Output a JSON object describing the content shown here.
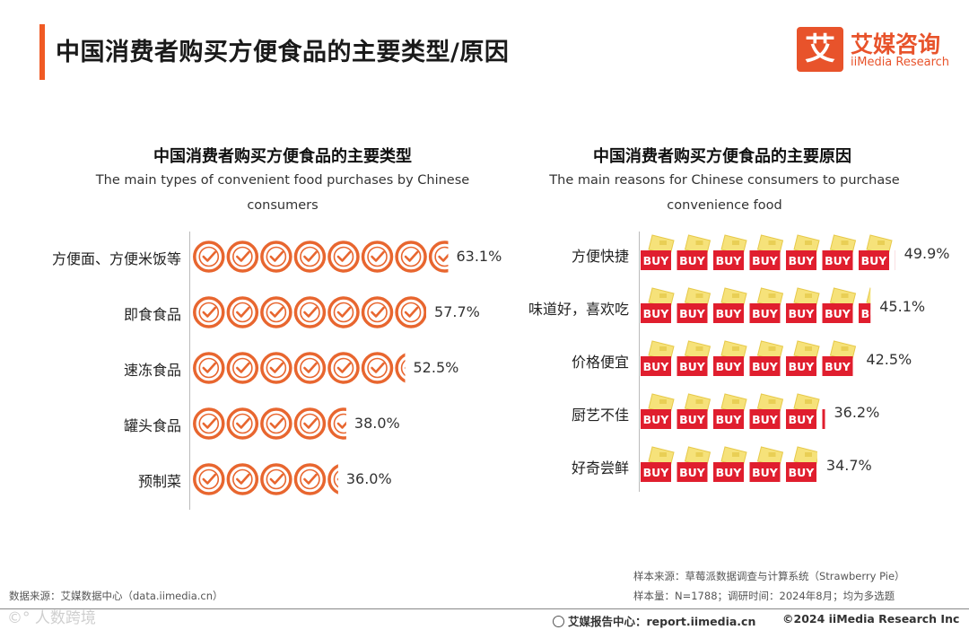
{
  "page": {
    "title": "中国消费者购买方便食品的主要类型/原因"
  },
  "logo": {
    "glyph": "艾",
    "cn": "艾媒咨询",
    "en": "iiMedia Research",
    "color": "#e8532b"
  },
  "chart_data": [
    {
      "type": "bar",
      "title": "中国消费者购买方便食品的主要类型",
      "subtitle": "The main types of convenient food purchases by Chinese consumers",
      "categories": [
        "方便面、方便米饭等",
        "即食食品",
        "速冻食品",
        "罐头食品",
        "预制菜"
      ],
      "values": [
        63.1,
        57.7,
        52.5,
        38.0,
        36.0
      ],
      "value_labels": [
        "63.1%",
        "57.7%",
        "52.5%",
        "38.0%",
        "36.0%"
      ],
      "unit": "%",
      "icon": "check-circle-icon",
      "color": "#e8662f"
    },
    {
      "type": "bar",
      "title": "中国消费者购买方便食品的主要原因",
      "subtitle": "The main reasons for Chinese consumers to purchase convenience food",
      "categories": [
        "方便快捷",
        "味道好，喜欢吃",
        "价格便宜",
        "厨艺不佳",
        "好奇尝鲜"
      ],
      "values": [
        49.9,
        45.1,
        42.5,
        36.2,
        34.7
      ],
      "value_labels": [
        "49.9%",
        "45.1%",
        "42.5%",
        "36.2%",
        "34.7%"
      ],
      "unit": "%",
      "icon": "buy-tag-icon",
      "icon_text": "BUY",
      "color": "#e01e2e"
    }
  ],
  "footer": {
    "source_left": "数据来源：艾媒数据中心（data.iimedia.cn）",
    "sample_source": "样本来源：草莓派数据调查与计算系统（Strawberry Pie）",
    "sample_info": "样本量：N=1788；调研时间：2024年8月；均为多选题",
    "report_center": "艾媒报告中心：report.iimedia.cn",
    "copyright": "©2024  iiMedia Research Inc",
    "watermark": "©° 人数跨境"
  }
}
